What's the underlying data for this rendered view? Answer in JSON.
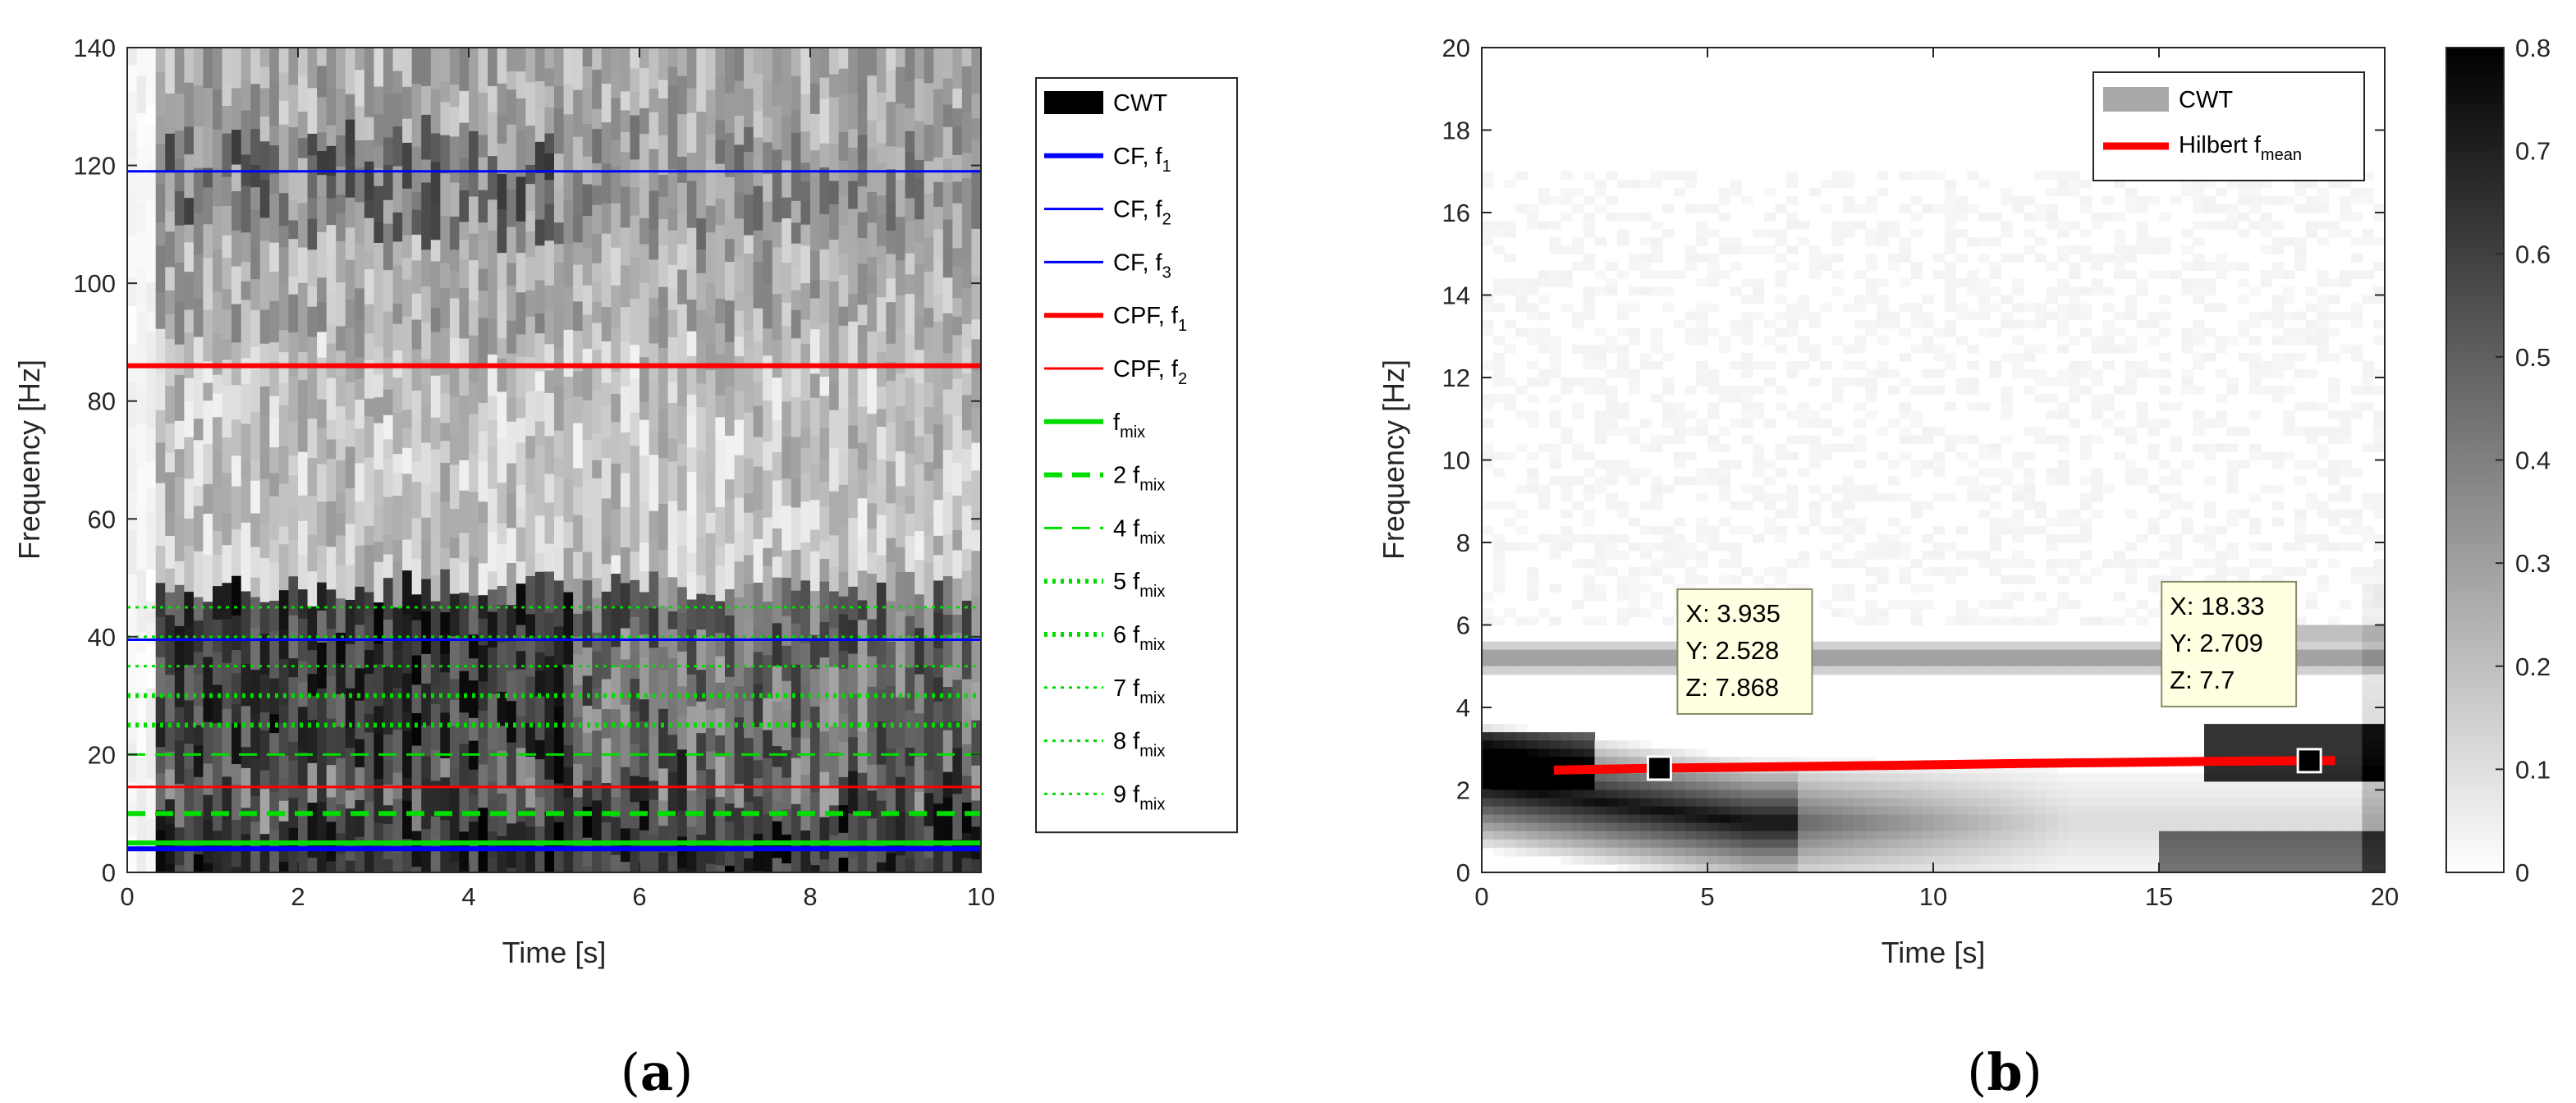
{
  "chart_data": [
    {
      "type": "heatmap",
      "panel_label": "a",
      "xlabel": "Time [s]",
      "ylabel": "Frequency [Hz]",
      "xlim": [
        0,
        10
      ],
      "ylim": [
        0,
        140
      ],
      "xticks": [
        0,
        2,
        4,
        6,
        8,
        10
      ],
      "yticks": [
        0,
        20,
        40,
        60,
        80,
        100,
        120,
        140
      ],
      "colormap": "gray-inverted",
      "legend_position": "outside-right",
      "series": [
        {
          "name": "CWT",
          "type": "heatmap",
          "color": "#000000"
        },
        {
          "name": "CF, f",
          "sub": "1",
          "type": "line",
          "y": 4,
          "color": "#0000ff",
          "style": "solid-thick"
        },
        {
          "name": "CF, f",
          "sub": "2",
          "type": "line",
          "y": 119,
          "color": "#0000ff",
          "style": "solid"
        },
        {
          "name": "CF, f",
          "sub": "3",
          "type": "line",
          "y": 39.5,
          "color": "#0000ff",
          "style": "solid"
        },
        {
          "name": "CPF, f",
          "sub": "1",
          "type": "line",
          "y": 86,
          "color": "#ff0000",
          "style": "solid-thick"
        },
        {
          "name": "CPF, f",
          "sub": "2",
          "type": "line",
          "y": 14.5,
          "color": "#ff0000",
          "style": "solid"
        },
        {
          "name": "f",
          "sub": "mix",
          "type": "line",
          "y": 5,
          "color": "#00dd00",
          "style": "solid-thick"
        },
        {
          "name": "2 f",
          "sub": "mix",
          "type": "line",
          "y": 10,
          "color": "#00dd00",
          "style": "dashed-thick"
        },
        {
          "name": "4 f",
          "sub": "mix",
          "type": "line",
          "y": 20,
          "color": "#00dd00",
          "style": "dashed"
        },
        {
          "name": "5 f",
          "sub": "mix",
          "type": "line",
          "y": 25,
          "color": "#00dd00",
          "style": "dotted-thick"
        },
        {
          "name": "6 f",
          "sub": "mix",
          "type": "line",
          "y": 30,
          "color": "#00dd00",
          "style": "dotted-thick"
        },
        {
          "name": "7 f",
          "sub": "mix",
          "type": "line",
          "y": 35,
          "color": "#00dd00",
          "style": "dotted"
        },
        {
          "name": "8 f",
          "sub": "mix",
          "type": "line",
          "y": 40,
          "color": "#00dd00",
          "style": "dotted"
        },
        {
          "name": "9 f",
          "sub": "mix",
          "type": "line",
          "y": 45,
          "color": "#00dd00",
          "style": "dotted"
        }
      ]
    },
    {
      "type": "heatmap",
      "panel_label": "b",
      "xlabel": "Time [s]",
      "ylabel": "Frequency [Hz]",
      "xlim": [
        0,
        20
      ],
      "ylim": [
        0,
        20
      ],
      "xticks": [
        0,
        5,
        10,
        15,
        20
      ],
      "yticks": [
        0,
        2,
        4,
        6,
        8,
        10,
        12,
        14,
        16,
        18,
        20
      ],
      "colormap": "gray-inverted",
      "colorbar": {
        "range": [
          0,
          0.8
        ],
        "ticks": [
          0,
          0.1,
          0.2,
          0.3,
          0.4,
          0.5,
          0.6,
          0.7,
          0.8
        ]
      },
      "legend_position": "top-right",
      "series": [
        {
          "name": "CWT",
          "type": "heatmap",
          "color": "#a8a8a8"
        },
        {
          "name": "Hilbert f",
          "sub": "mean",
          "type": "line",
          "color": "#ff0000",
          "x": [
            1.6,
            3.935,
            8,
            12,
            16,
            18.33,
            18.9
          ],
          "y": [
            2.48,
            2.528,
            2.58,
            2.64,
            2.69,
            2.709,
            2.71
          ]
        }
      ],
      "datatips": [
        {
          "lines": [
            "X: 3.935",
            "Y: 2.528",
            "Z: 7.868"
          ],
          "x": 3.935,
          "y": 2.528
        },
        {
          "lines": [
            "X: 18.33",
            "Y: 2.709",
            "Z: 7.7"
          ],
          "x": 18.33,
          "y": 2.709
        }
      ]
    }
  ],
  "colors": {
    "axis": "#262626",
    "datatip_bg": "#ffffe1"
  }
}
